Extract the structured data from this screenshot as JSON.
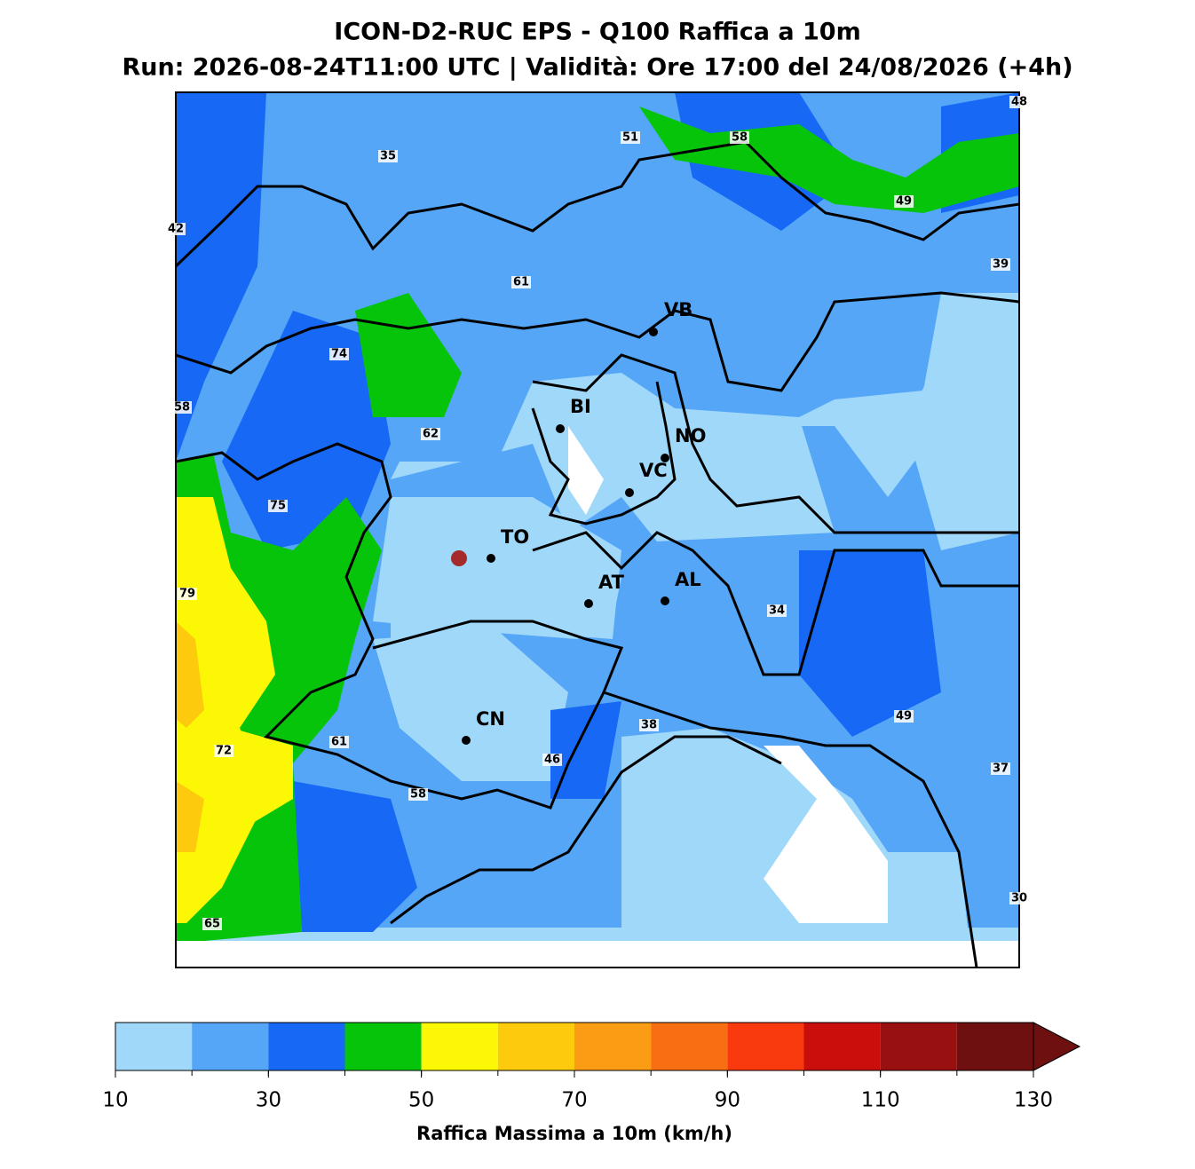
{
  "header": {
    "title": "ICON-D2-RUC EPS - Q100 Raffica a 10m",
    "subtitle": "Run: 2026-08-24T11:00 UTC | Validità: Ore 17:00 del 24/08/2026 (+4h)"
  },
  "map": {
    "cities": [
      "VB",
      "BI",
      "NO",
      "VC",
      "TO",
      "AT",
      "AL",
      "CN"
    ],
    "labels": [
      35,
      51,
      58,
      48,
      42,
      49,
      61,
      39,
      74,
      58,
      62,
      75,
      79,
      34,
      72,
      61,
      58,
      46,
      38,
      49,
      37,
      65,
      30
    ]
  },
  "colorbar": {
    "bins": [
      10,
      20,
      30,
      40,
      50,
      60,
      70,
      80,
      90,
      100,
      110,
      120,
      130
    ],
    "colors": [
      "#a0d8fa",
      "#55a6f7",
      "#1668f5",
      "#06c40a",
      "#fcf805",
      "#fdca0d",
      "#fb9d14",
      "#f86e13",
      "#f9390e",
      "#c90e0c",
      "#991010",
      "#6e1010"
    ],
    "extend_color": "#6e1010",
    "ticks": [
      10,
      30,
      50,
      70,
      90,
      110,
      130
    ],
    "label": "Raffica Massima a 10m (km/h)"
  }
}
